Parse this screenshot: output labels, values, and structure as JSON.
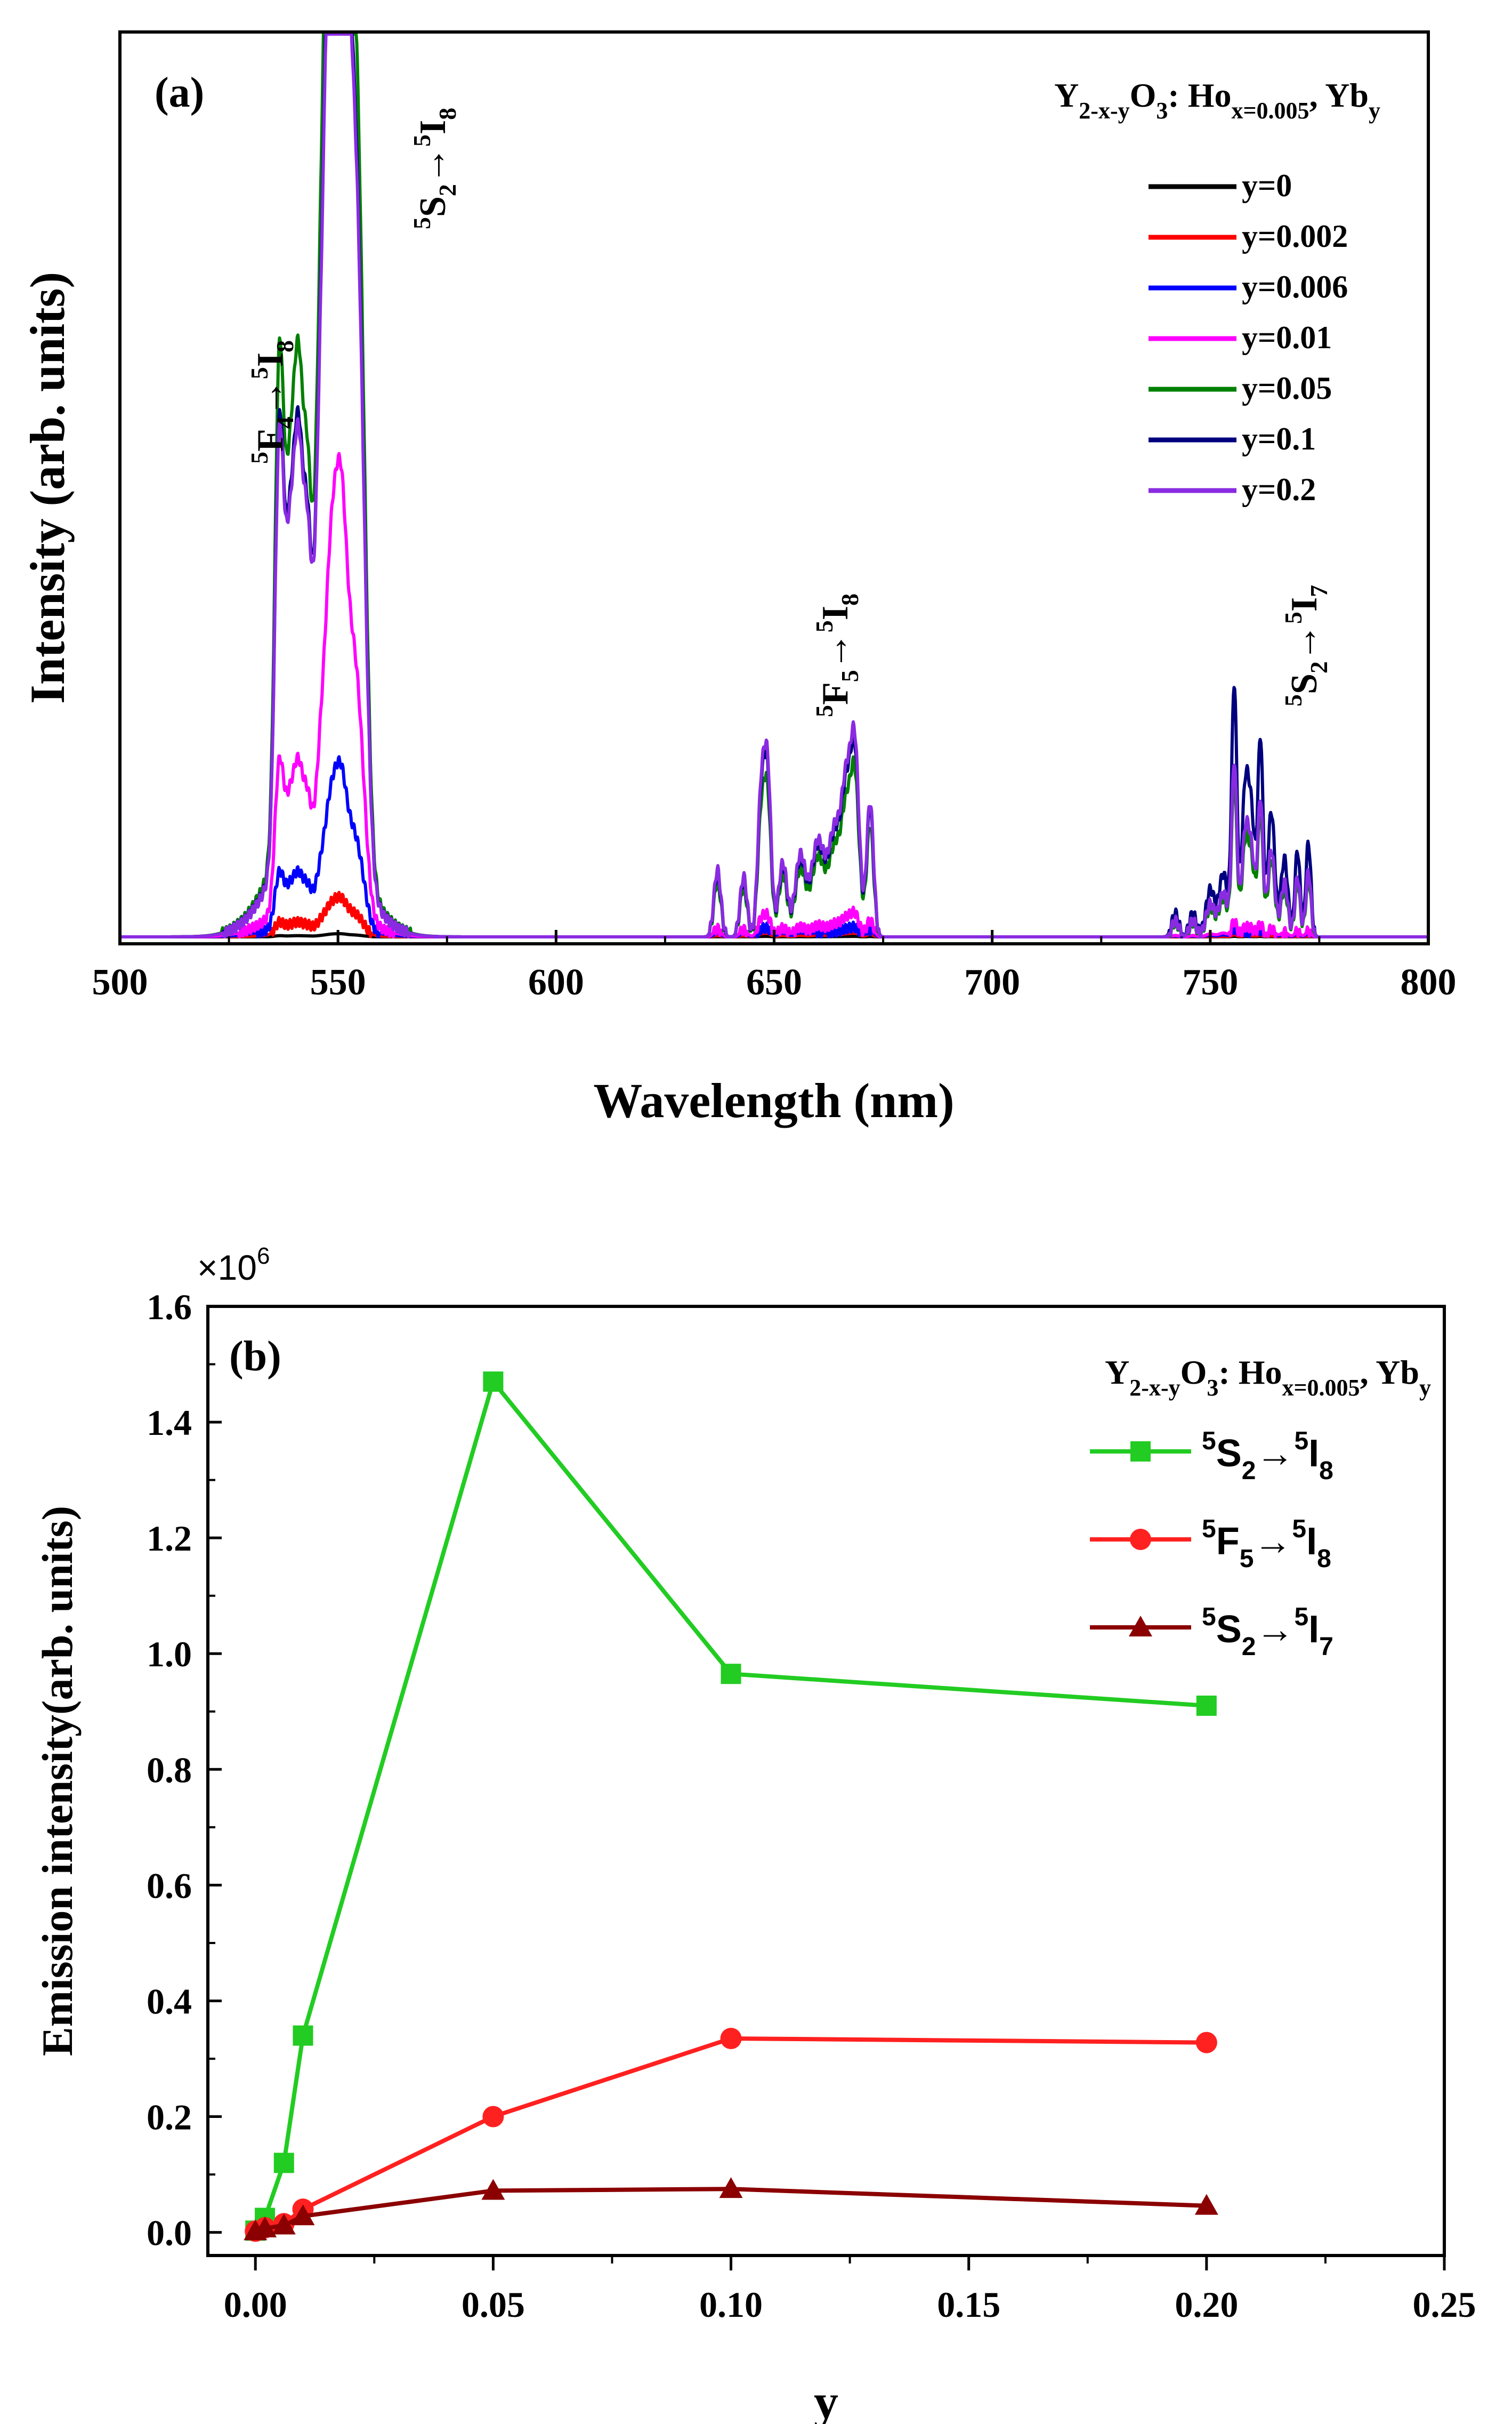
{
  "chart_data": [
    {
      "type": "line",
      "panel_label": "(a)",
      "composition": {
        "base": "Y",
        "base_sub": "2-x-y",
        "o": "O",
        "o_sub": "3",
        "mid": ": Ho",
        "ho_sub": "x=0.005",
        "comma": ", Yb",
        "yb_sub": "y"
      },
      "xlabel": "Wavelength (nm)",
      "ylabel": "Intensity (arb. units)",
      "xlim": [
        500,
        800
      ],
      "ylim": [
        0,
        100
      ],
      "xticks": [
        "500",
        "550",
        "600",
        "650",
        "700",
        "750",
        "800"
      ],
      "peaks": [
        {
          "center": 536.5,
          "width": 1.0,
          "rel": 0.58
        },
        {
          "center": 539,
          "width": 1.2,
          "rel": 0.4
        },
        {
          "center": 541,
          "width": 1.0,
          "rel": 0.42
        },
        {
          "center": 543,
          "width": 1.0,
          "rel": 0.35
        },
        {
          "center": 546,
          "width": 1.2,
          "rel": 0.5
        },
        {
          "center": 548,
          "width": 1.2,
          "rel": 0.7
        },
        {
          "center": 549.5,
          "width": 1.4,
          "rel": 1.0
        },
        {
          "center": 551,
          "width": 1.2,
          "rel": 0.9
        },
        {
          "center": 553,
          "width": 1.4,
          "rel": 0.7
        },
        {
          "center": 555,
          "width": 1.5,
          "rel": 0.6
        },
        {
          "center": 545,
          "width": 8.0,
          "rel": 0.2
        },
        {
          "center": 637,
          "width": 0.8,
          "rel": 0.1
        },
        {
          "center": 643,
          "width": 0.8,
          "rel": 0.09
        },
        {
          "center": 647,
          "width": 0.8,
          "rel": 0.2
        },
        {
          "center": 648.5,
          "width": 0.8,
          "rel": 0.24
        },
        {
          "center": 652,
          "width": 1.0,
          "rel": 0.11
        },
        {
          "center": 656,
          "width": 1.2,
          "rel": 0.12
        },
        {
          "center": 660,
          "width": 1.5,
          "rel": 0.14
        },
        {
          "center": 664,
          "width": 1.5,
          "rel": 0.16
        },
        {
          "center": 666.5,
          "width": 1.0,
          "rel": 0.18
        },
        {
          "center": 668.5,
          "width": 1.0,
          "rel": 0.28
        },
        {
          "center": 672,
          "width": 0.8,
          "rel": 0.2
        },
        {
          "center": 742,
          "width": 0.8,
          "rel": 0.03
        },
        {
          "center": 746,
          "width": 0.8,
          "rel": 0.03
        },
        {
          "center": 750,
          "width": 1.0,
          "rel": 0.06
        },
        {
          "center": 753,
          "width": 1.0,
          "rel": 0.08
        },
        {
          "center": 755.5,
          "width": 0.6,
          "rel": 0.32
        },
        {
          "center": 758,
          "width": 0.8,
          "rel": 0.18
        },
        {
          "center": 759.5,
          "width": 0.8,
          "rel": 0.14
        },
        {
          "center": 761.5,
          "width": 0.6,
          "rel": 0.25
        },
        {
          "center": 764,
          "width": 0.8,
          "rel": 0.16
        },
        {
          "center": 767,
          "width": 0.8,
          "rel": 0.1
        },
        {
          "center": 770,
          "width": 0.6,
          "rel": 0.11
        },
        {
          "center": 772.5,
          "width": 0.6,
          "rel": 0.12
        }
      ],
      "series": [
        {
          "name": "y=0",
          "color": "#000000",
          "scales": [
            0.2,
            0.2,
            0.2
          ]
        },
        {
          "name": "y=0.002",
          "color": "#ff0000",
          "scales": [
            2.5,
            1.5,
            0.8
          ]
        },
        {
          "name": "y=0.006",
          "color": "#0000ff",
          "scales": [
            11,
            4,
            3
          ]
        },
        {
          "name": "y=0.01",
          "color": "#ff00ff",
          "scales": [
            30,
            10,
            6
          ]
        },
        {
          "name": "y=0.05",
          "color": "#008000",
          "scales": [
            100,
            70,
            60
          ]
        },
        {
          "name": "y=0.1",
          "color": "#00007f",
          "scales": [
            88,
            80,
            98
          ]
        },
        {
          "name": "y=0.2",
          "color": "#8a2be2",
          "scales": [
            86,
            84,
            68
          ]
        }
      ],
      "annotations": [
        {
          "sup": "5",
          "a": "F",
          "asub": "4",
          "arrow": "→",
          "bsup": "5",
          "b": "I",
          "bsub": "8"
        },
        {
          "sup": "5",
          "a": "S",
          "asub": "2",
          "arrow": "→",
          "bsup": "5",
          "b": "I",
          "bsub": "8"
        },
        {
          "sup": "5",
          "a": "F",
          "asub": "5",
          "arrow": "→",
          "bsup": "5",
          "b": "I",
          "bsub": "8"
        },
        {
          "sup": "5",
          "a": "S",
          "asub": "2",
          "arrow": "→",
          "bsup": "5",
          "b": "I",
          "bsub": "7"
        }
      ]
    },
    {
      "type": "line",
      "panel_label": "(b)",
      "composition": {
        "base": "Y",
        "base_sub": "2-x-y",
        "o": "O",
        "o_sub": "3",
        "mid": ": Ho",
        "ho_sub": "x=0.005",
        "comma": ", Yb",
        "yb_sub": "y"
      },
      "xlabel": "y",
      "ylabel": "Emission intensity(arb. units)",
      "multiplier": "×10",
      "multiplier_exp": "6",
      "xlim": [
        -0.01,
        0.25
      ],
      "ylim": [
        -0.04,
        1.6
      ],
      "xticks": [
        "0.00",
        "0.05",
        "0.10",
        "0.15",
        "0.20",
        "0.25"
      ],
      "yticks": [
        "0.0",
        "0.2",
        "0.4",
        "0.6",
        "0.8",
        "1.0",
        "1.2",
        "1.4",
        "1.6"
      ],
      "series": [
        {
          "name_sup": "5",
          "name_a": "S",
          "name_asub": "2",
          "name_arrow": "→",
          "name_bsup": "5",
          "name_b": "I",
          "name_bsub": "8",
          "color": "#22cc22",
          "marker": "square",
          "x": [
            0,
            0.002,
            0.006,
            0.01,
            0.05,
            0.1,
            0.2
          ],
          "y": [
            0.003,
            0.025,
            0.12,
            0.34,
            1.47,
            0.965,
            0.91
          ]
        },
        {
          "name_sup": "5",
          "name_a": "F",
          "name_asub": "5",
          "name_arrow": "→",
          "name_bsup": "5",
          "name_b": "I",
          "name_bsub": "8",
          "color": "#ff2020",
          "marker": "circle",
          "x": [
            0,
            0.002,
            0.006,
            0.01,
            0.05,
            0.1,
            0.2
          ],
          "y": [
            0.002,
            0.008,
            0.015,
            0.04,
            0.2,
            0.335,
            0.328
          ]
        },
        {
          "name_sup": "5",
          "name_a": "S",
          "name_asub": "2",
          "name_arrow": "→",
          "name_bsup": "5",
          "name_b": "I",
          "name_bsub": "7",
          "color": "#8b0000",
          "marker": "triangle",
          "x": [
            0,
            0.002,
            0.006,
            0.01,
            0.05,
            0.1,
            0.2
          ],
          "y": [
            0.002,
            0.007,
            0.012,
            0.028,
            0.072,
            0.075,
            0.046
          ]
        }
      ]
    }
  ]
}
